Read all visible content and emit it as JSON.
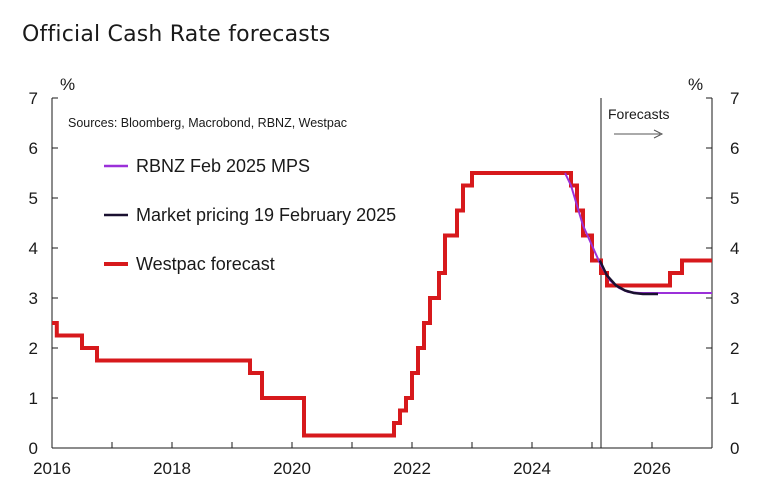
{
  "chart_data": {
    "type": "line",
    "title": "Official Cash Rate forecasts",
    "ylabel_left": "%",
    "ylabel_right": "%",
    "ylim": [
      0,
      7
    ],
    "yticks": [
      "0",
      "1",
      "2",
      "3",
      "4",
      "5",
      "6",
      "7"
    ],
    "xlim": [
      2016,
      2027
    ],
    "xticks": [
      "2016",
      "2018",
      "2020",
      "2022",
      "2024",
      "2026"
    ],
    "source": "Sources: Bloomberg, Macrobond, RBNZ, Westpac",
    "forecast_label": "Forecasts",
    "forecast_start": 2025.15,
    "series": [
      {
        "name": "RBNZ Feb 2025 MPS",
        "color": "#9b30d9",
        "width": 2,
        "step": false,
        "x": [
          2024.55,
          2024.65,
          2024.75,
          2024.85,
          2025.0,
          2025.15,
          2025.3,
          2025.45,
          2025.6,
          2025.8,
          2026.0,
          2026.5,
          2027.0
        ],
        "y": [
          5.5,
          5.25,
          4.85,
          4.45,
          4.05,
          3.65,
          3.35,
          3.2,
          3.12,
          3.1,
          3.1,
          3.1,
          3.1
        ]
      },
      {
        "name": "Market pricing 19 February 2025",
        "color": "#1a1030",
        "width": 2.5,
        "step": false,
        "x": [
          2025.13,
          2025.25,
          2025.4,
          2025.55,
          2025.7,
          2025.85,
          2026.0,
          2026.1
        ],
        "y": [
          3.75,
          3.45,
          3.25,
          3.15,
          3.1,
          3.08,
          3.08,
          3.08
        ]
      },
      {
        "name": "Westpac forecast",
        "color": "#d7191c",
        "width": 4,
        "step": true,
        "x": [
          2016.0,
          2016.08,
          2016.5,
          2016.75,
          2016.85,
          2019.3,
          2019.5,
          2019.6,
          2020.2,
          2021.7,
          2021.8,
          2021.9,
          2022.0,
          2022.1,
          2022.2,
          2022.3,
          2022.45,
          2022.55,
          2022.75,
          2022.85,
          2023.0,
          2023.1,
          2023.2,
          2024.65,
          2024.75,
          2024.85,
          2025.0,
          2025.15,
          2025.25,
          2025.4,
          2026.3,
          2026.5,
          2026.75,
          2027.0
        ],
        "y": [
          2.5,
          2.25,
          2.0,
          1.75,
          1.75,
          1.5,
          1.0,
          1.0,
          0.25,
          0.5,
          0.75,
          1.0,
          1.5,
          2.0,
          2.5,
          3.0,
          3.5,
          4.25,
          4.75,
          5.25,
          5.5,
          5.5,
          5.5,
          5.25,
          4.75,
          4.25,
          3.75,
          3.5,
          3.25,
          3.25,
          3.5,
          3.75,
          3.75,
          3.75
        ]
      }
    ]
  }
}
